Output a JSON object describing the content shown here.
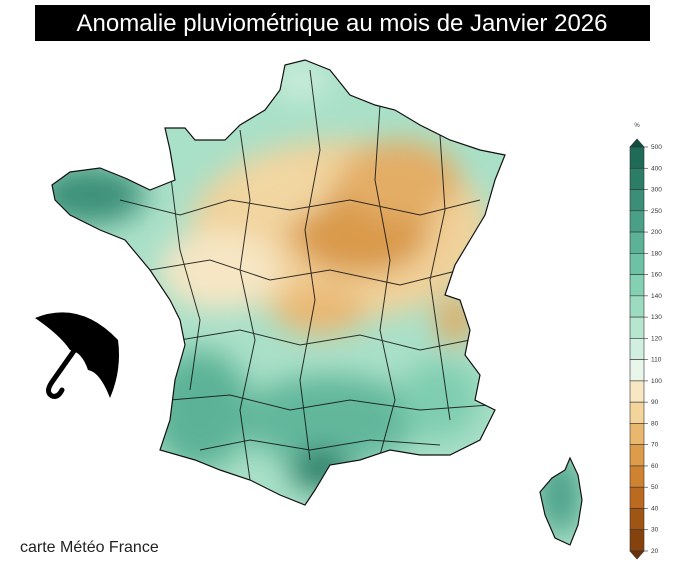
{
  "header": {
    "title": "Anomalie pluviométrique au mois de Janvier 2026"
  },
  "credit": "carte Météo France",
  "legend": {
    "unit": "%",
    "ticks": [
      500,
      400,
      300,
      250,
      200,
      180,
      160,
      140,
      130,
      120,
      110,
      100,
      90,
      80,
      70,
      60,
      50,
      40,
      30,
      20
    ],
    "colors": [
      "#0f4f3f",
      "#1f6b57",
      "#2c7d66",
      "#3b8f77",
      "#4aa087",
      "#5bb296",
      "#6dc2a5",
      "#84d0b3",
      "#9ddbc1",
      "#b7e6d0",
      "#d0efe0",
      "#e9f6ea",
      "#f8e7c3",
      "#f3d49b",
      "#e9b86e",
      "#dd9c4a",
      "#cf8331",
      "#bb6a1f",
      "#a05515",
      "#85420d",
      "#6b3208"
    ]
  }
}
